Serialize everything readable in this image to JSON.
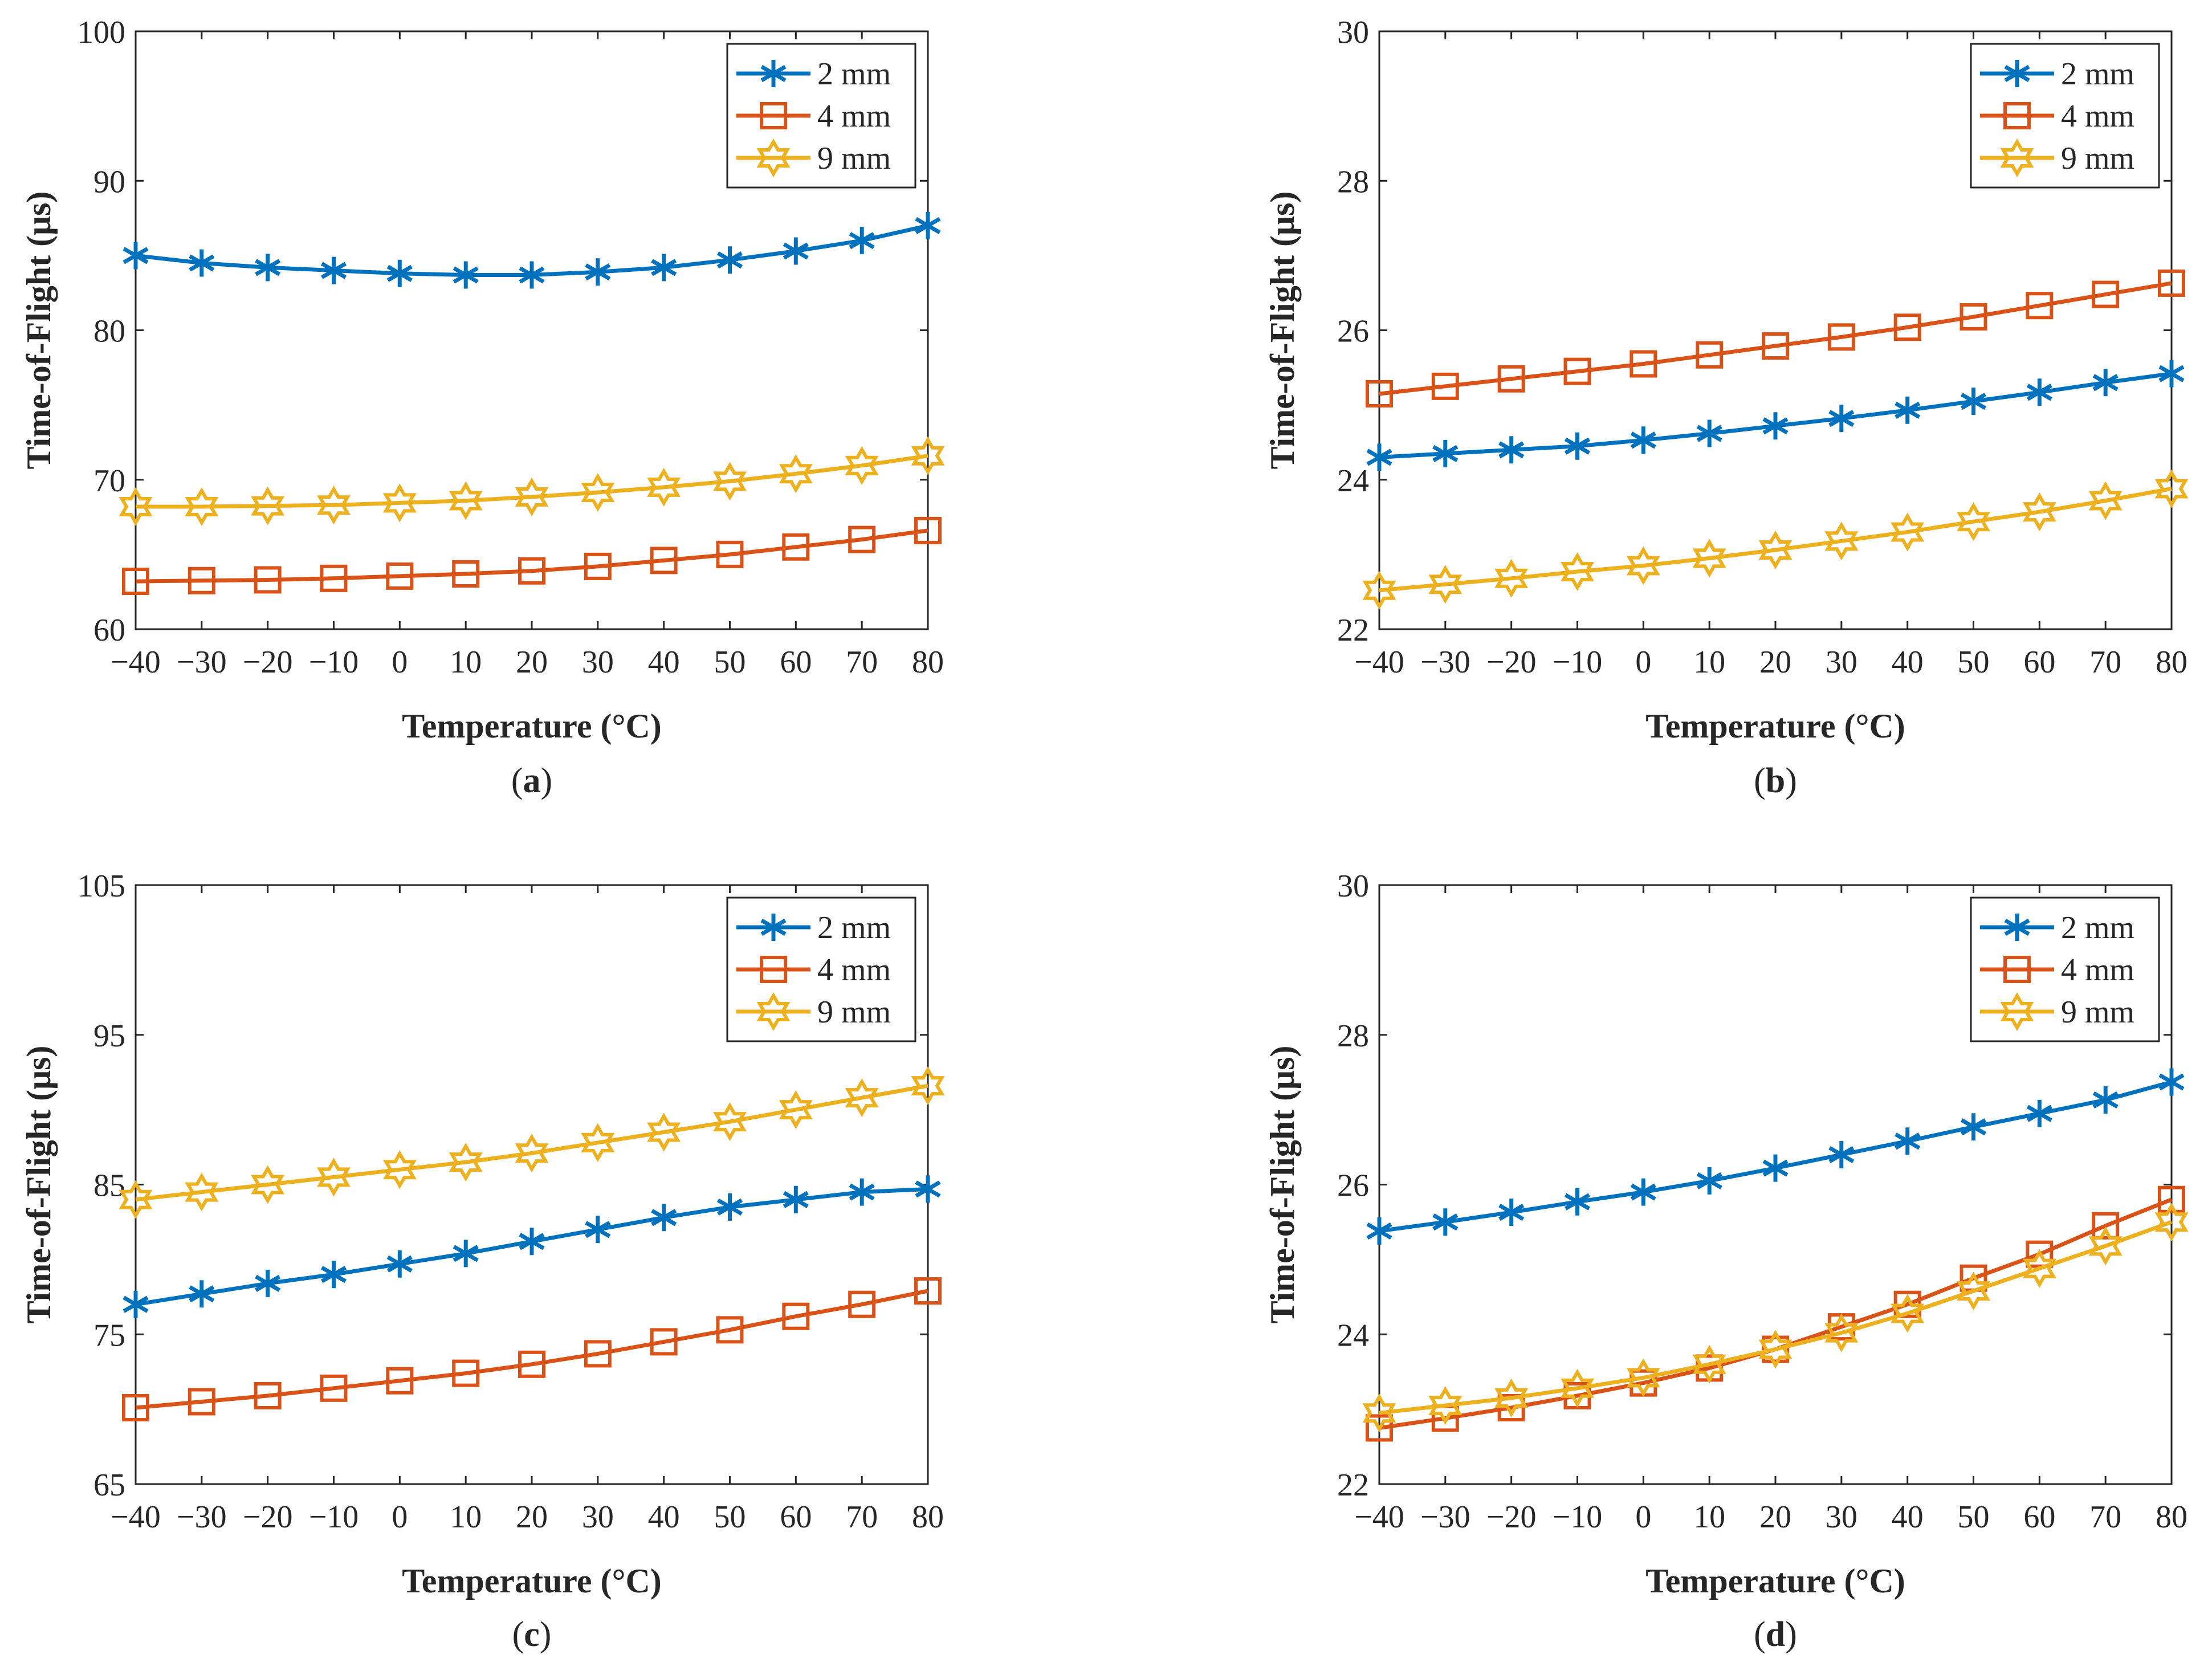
{
  "figure": {
    "colors": {
      "s2mm": "#0072BD",
      "s4mm": "#D95319",
      "s9mm": "#EDB120",
      "axis": "#262626"
    }
  },
  "chart_data": [
    {
      "panel": "a",
      "caption": "(a)",
      "caption_letter": "a",
      "type": "line",
      "xlabel": "Temperature (°C)",
      "ylabel": "Time-of-Flight (μs)",
      "x": [
        -40,
        -30,
        -20,
        -10,
        0,
        10,
        20,
        30,
        40,
        50,
        60,
        70,
        80
      ],
      "xticks": [
        "−40",
        "−30",
        "−20",
        "−10",
        "0",
        "10",
        "20",
        "30",
        "40",
        "50",
        "60",
        "70",
        "80"
      ],
      "xlim": [
        -40,
        80
      ],
      "ylim": [
        60,
        100
      ],
      "yticks": [
        "60",
        "70",
        "80",
        "90",
        "100"
      ],
      "legend_position": "top-right",
      "series": [
        {
          "name": "2 mm",
          "marker": "asterisk",
          "values": [
            85.0,
            84.5,
            84.2,
            84.0,
            83.8,
            83.7,
            83.7,
            83.9,
            84.2,
            84.7,
            85.3,
            86.0,
            87.0
          ]
        },
        {
          "name": "4 mm",
          "marker": "square",
          "values": [
            63.2,
            63.25,
            63.3,
            63.4,
            63.55,
            63.7,
            63.9,
            64.2,
            64.6,
            65.0,
            65.5,
            66.0,
            66.6
          ]
        },
        {
          "name": "9 mm",
          "marker": "hexagram",
          "values": [
            68.2,
            68.2,
            68.25,
            68.3,
            68.45,
            68.6,
            68.85,
            69.15,
            69.5,
            69.9,
            70.4,
            70.95,
            71.6
          ]
        }
      ]
    },
    {
      "panel": "b",
      "caption": "(b)",
      "caption_letter": "b",
      "type": "line",
      "xlabel": "Temperature (°C)",
      "ylabel": "Time-of-Flight (μs)",
      "x": [
        -40,
        -30,
        -20,
        -10,
        0,
        10,
        20,
        30,
        40,
        50,
        60,
        70,
        80
      ],
      "xticks": [
        "−40",
        "−30",
        "−20",
        "−10",
        "0",
        "10",
        "20",
        "30",
        "40",
        "50",
        "60",
        "70",
        "80"
      ],
      "xlim": [
        -40,
        80
      ],
      "ylim": [
        22,
        30
      ],
      "yticks": [
        "22",
        "24",
        "26",
        "28",
        "30"
      ],
      "legend_position": "top-right",
      "series": [
        {
          "name": "2 mm",
          "marker": "asterisk",
          "values": [
            24.3,
            24.35,
            24.4,
            24.45,
            24.53,
            24.62,
            24.72,
            24.82,
            24.93,
            25.05,
            25.17,
            25.3,
            25.42
          ]
        },
        {
          "name": "4 mm",
          "marker": "square",
          "values": [
            25.15,
            25.25,
            25.35,
            25.45,
            25.55,
            25.67,
            25.79,
            25.91,
            26.04,
            26.18,
            26.33,
            26.48,
            26.63
          ]
        },
        {
          "name": "9 mm",
          "marker": "hexagram",
          "values": [
            22.52,
            22.6,
            22.68,
            22.77,
            22.85,
            22.95,
            23.06,
            23.18,
            23.3,
            23.44,
            23.57,
            23.72,
            23.88
          ]
        }
      ]
    },
    {
      "panel": "c",
      "caption": "(c)",
      "caption_letter": "c",
      "type": "line",
      "xlabel": "Temperature (°C)",
      "ylabel": "Time-of-Flight (μs)",
      "x": [
        -40,
        -30,
        -20,
        -10,
        0,
        10,
        20,
        30,
        40,
        50,
        60,
        70,
        80
      ],
      "xticks": [
        "−40",
        "−30",
        "−20",
        "−10",
        "0",
        "10",
        "20",
        "30",
        "40",
        "50",
        "60",
        "70",
        "80"
      ],
      "xlim": [
        -40,
        80
      ],
      "ylim": [
        65,
        105
      ],
      "yticks": [
        "65",
        "75",
        "85",
        "95",
        "105"
      ],
      "legend_position": "top-right",
      "series": [
        {
          "name": "2 mm",
          "marker": "asterisk",
          "values": [
            77.0,
            77.7,
            78.4,
            79.0,
            79.7,
            80.4,
            81.2,
            82.0,
            82.8,
            83.5,
            84.0,
            84.5,
            84.7
          ]
        },
        {
          "name": "4 mm",
          "marker": "square",
          "values": [
            70.1,
            70.5,
            70.9,
            71.4,
            71.9,
            72.4,
            73.0,
            73.7,
            74.5,
            75.3,
            76.2,
            77.0,
            77.9
          ]
        },
        {
          "name": "9 mm",
          "marker": "hexagram",
          "values": [
            84.0,
            84.5,
            85.0,
            85.5,
            86.0,
            86.5,
            87.1,
            87.8,
            88.5,
            89.2,
            90.0,
            90.8,
            91.6
          ]
        }
      ]
    },
    {
      "panel": "d",
      "caption": "(d)",
      "caption_letter": "d",
      "type": "line",
      "xlabel": "Temperature (°C)",
      "ylabel": "Time-of-Flight (μs)",
      "x": [
        -40,
        -30,
        -20,
        -10,
        0,
        10,
        20,
        30,
        40,
        50,
        60,
        70,
        80
      ],
      "xticks": [
        "−40",
        "−30",
        "−20",
        "−10",
        "0",
        "10",
        "20",
        "30",
        "40",
        "50",
        "60",
        "70",
        "80"
      ],
      "xlim": [
        -40,
        80
      ],
      "ylim": [
        22,
        30
      ],
      "yticks": [
        "22",
        "24",
        "26",
        "28",
        "30"
      ],
      "legend_position": "top-right",
      "series": [
        {
          "name": "2 mm",
          "marker": "asterisk",
          "values": [
            25.38,
            25.5,
            25.63,
            25.77,
            25.9,
            26.05,
            26.22,
            26.4,
            26.58,
            26.77,
            26.95,
            27.13,
            27.37
          ]
        },
        {
          "name": "4 mm",
          "marker": "square",
          "values": [
            22.75,
            22.88,
            23.02,
            23.18,
            23.35,
            23.55,
            23.8,
            24.1,
            24.4,
            24.75,
            25.07,
            25.45,
            25.8
          ]
        },
        {
          "name": "9 mm",
          "marker": "hexagram",
          "values": [
            22.95,
            23.05,
            23.15,
            23.28,
            23.42,
            23.6,
            23.8,
            24.02,
            24.28,
            24.58,
            24.88,
            25.18,
            25.5
          ]
        }
      ]
    }
  ]
}
